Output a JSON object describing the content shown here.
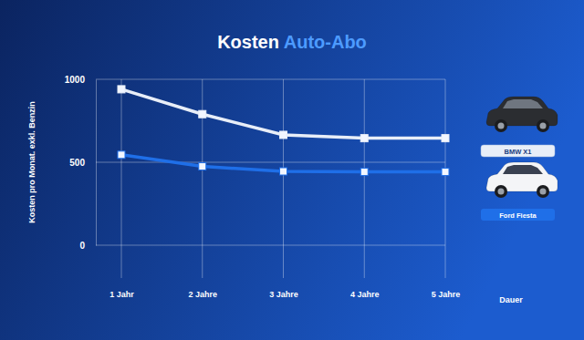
{
  "chart_data": {
    "type": "line",
    "title": "Kosten Auto-Abo",
    "y_label": "Kosten pro Monat. exkl. Benzin",
    "x_label": "Dauer",
    "categories": [
      "1 Jahr",
      "2 Jahre",
      "3 Jahre",
      "4 Jahre",
      "5 Jahre"
    ],
    "series": [
      {
        "name": "BMW X1",
        "color": "#e8eef8",
        "marker": "square",
        "values": [
          940,
          790,
          665,
          645,
          645
        ]
      },
      {
        "name": "Ford Fiesta",
        "color": "#1f6fe8",
        "marker": "square",
        "values": [
          545,
          475,
          445,
          442,
          442
        ]
      }
    ],
    "ylim": [
      0,
      1000
    ],
    "yticks": [
      0,
      500,
      1000
    ],
    "grid": true,
    "legend": "right"
  }
}
